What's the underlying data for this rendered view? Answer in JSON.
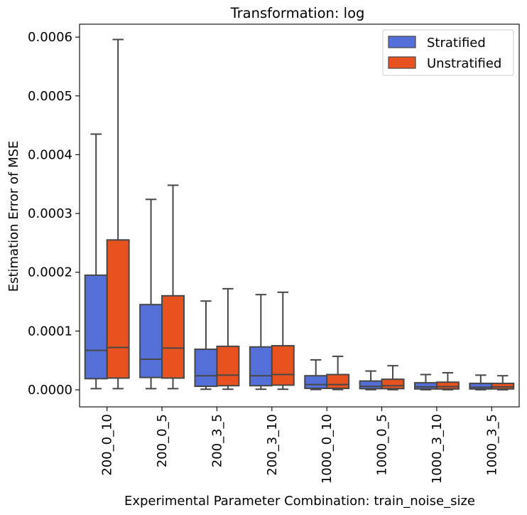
{
  "chart_data": {
    "type": "box",
    "title": "Transformation: log",
    "xlabel": "Experimental Parameter Combination: train_noise_size",
    "ylabel": "Estimation Error of MSE",
    "ylim": [
      -2.9e-05,
      0.000622
    ],
    "yticks": [
      0.0,
      0.0001,
      0.0002,
      0.0003,
      0.0004,
      0.0005,
      0.0006
    ],
    "ytick_labels": [
      "0.0000",
      "0.0001",
      "0.0002",
      "0.0003",
      "0.0004",
      "0.0005",
      "0.0006"
    ],
    "categories": [
      "200_0_10",
      "200_0_5",
      "200_3_5",
      "200_3_10",
      "1000_0_10",
      "1000_0_5",
      "1000_3_10",
      "1000_3_5"
    ],
    "legend_position": "top-right",
    "grid": false,
    "series": [
      {
        "name": "Stratified",
        "color": "#5470d8",
        "boxes": [
          {
            "whisker_low": 2e-06,
            "q1": 1.9e-05,
            "median": 6.7e-05,
            "q3": 0.000195,
            "whisker_high": 0.000435
          },
          {
            "whisker_low": 2e-06,
            "q1": 2.1e-05,
            "median": 5.2e-05,
            "q3": 0.000145,
            "whisker_high": 0.000324
          },
          {
            "whisker_low": 1e-06,
            "q1": 6e-06,
            "median": 2.4e-05,
            "q3": 6.9e-05,
            "whisker_high": 0.000151
          },
          {
            "whisker_low": 1e-06,
            "q1": 7e-06,
            "median": 2.4e-05,
            "q3": 7.3e-05,
            "whisker_high": 0.000162
          },
          {
            "whisker_low": 5e-07,
            "q1": 2.5e-06,
            "median": 9e-06,
            "q3": 2.4e-05,
            "whisker_high": 5.1e-05
          },
          {
            "whisker_low": 3e-07,
            "q1": 2e-06,
            "median": 6e-06,
            "q3": 1.5e-05,
            "whisker_high": 3.2e-05
          },
          {
            "whisker_low": 2e-07,
            "q1": 1.5e-06,
            "median": 5e-06,
            "q3": 1.2e-05,
            "whisker_high": 2.6e-05
          },
          {
            "whisker_low": 2e-07,
            "q1": 1.5e-06,
            "median": 4.5e-06,
            "q3": 1.1e-05,
            "whisker_high": 2.5e-05
          }
        ]
      },
      {
        "name": "Unstratified",
        "color": "#e8521f",
        "boxes": [
          {
            "whisker_low": 2e-06,
            "q1": 2e-05,
            "median": 7.2e-05,
            "q3": 0.000255,
            "whisker_high": 0.000596
          },
          {
            "whisker_low": 2e-06,
            "q1": 2e-05,
            "median": 7.1e-05,
            "q3": 0.00016,
            "whisker_high": 0.000348
          },
          {
            "whisker_low": 1e-06,
            "q1": 7e-06,
            "median": 2.5e-05,
            "q3": 7.4e-05,
            "whisker_high": 0.000172
          },
          {
            "whisker_low": 1e-06,
            "q1": 8e-06,
            "median": 2.6e-05,
            "q3": 7.5e-05,
            "whisker_high": 0.000166
          },
          {
            "whisker_low": 5e-07,
            "q1": 2.5e-06,
            "median": 9e-06,
            "q3": 2.6e-05,
            "whisker_high": 5.7e-05
          },
          {
            "whisker_low": 3e-07,
            "q1": 2e-06,
            "median": 7e-06,
            "q3": 1.8e-05,
            "whisker_high": 4.1e-05
          },
          {
            "whisker_low": 2e-07,
            "q1": 1.5e-06,
            "median": 5.5e-06,
            "q3": 1.3e-05,
            "whisker_high": 2.9e-05
          },
          {
            "whisker_low": 2e-07,
            "q1": 1.5e-06,
            "median": 5e-06,
            "q3": 1.1e-05,
            "whisker_high": 2.4e-05
          }
        ]
      }
    ]
  }
}
